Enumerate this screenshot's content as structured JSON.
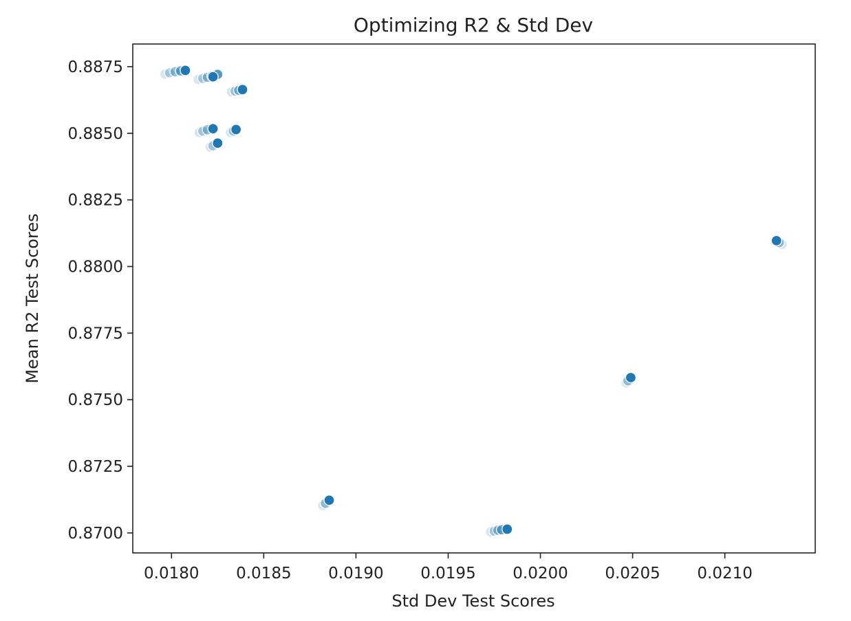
{
  "chart_data": {
    "type": "scatter",
    "title": "Optimizing R2 & Std Dev",
    "xlabel": "Std Dev Test Scores",
    "ylabel": "Mean R2 Test Scores",
    "xlim": [
      0.01779,
      0.02149
    ],
    "ylim": [
      0.86925,
      0.88835
    ],
    "xticks": [
      0.018,
      0.0185,
      0.019,
      0.0195,
      0.02,
      0.0205,
      0.021
    ],
    "xtick_labels": [
      "0.0180",
      "0.0185",
      "0.0190",
      "0.0195",
      "0.0200",
      "0.0205",
      "0.0210"
    ],
    "yticks": [
      0.87,
      0.8725,
      0.875,
      0.8775,
      0.88,
      0.8825,
      0.885,
      0.8875
    ],
    "ytick_labels": [
      "0.8700",
      "0.8725",
      "0.8750",
      "0.8775",
      "0.8800",
      "0.8825",
      "0.8850",
      "0.8875"
    ],
    "grid": false,
    "point_color": "#1f77b4",
    "series": [
      {
        "points": [
          {
            "x": 0.017965,
            "y": 0.88722,
            "a": 0.18
          },
          {
            "x": 0.01799,
            "y": 0.88727,
            "a": 0.3
          },
          {
            "x": 0.01802,
            "y": 0.88731,
            "a": 0.45
          },
          {
            "x": 0.01805,
            "y": 0.88734,
            "a": 0.6
          },
          {
            "x": 0.018075,
            "y": 0.88736,
            "a": 1.0
          },
          {
            "x": 0.018145,
            "y": 0.88702,
            "a": 0.18
          },
          {
            "x": 0.01817,
            "y": 0.88706,
            "a": 0.3
          },
          {
            "x": 0.018195,
            "y": 0.8871,
            "a": 0.45
          },
          {
            "x": 0.01822,
            "y": 0.88715,
            "a": 0.6
          },
          {
            "x": 0.01825,
            "y": 0.88721,
            "a": 0.75
          },
          {
            "x": 0.018225,
            "y": 0.88712,
            "a": 1.0
          },
          {
            "x": 0.018325,
            "y": 0.88655,
            "a": 0.18
          },
          {
            "x": 0.018345,
            "y": 0.88658,
            "a": 0.3
          },
          {
            "x": 0.018365,
            "y": 0.88661,
            "a": 0.45
          },
          {
            "x": 0.018385,
            "y": 0.88664,
            "a": 1.0
          },
          {
            "x": 0.01815,
            "y": 0.88503,
            "a": 0.18
          },
          {
            "x": 0.01817,
            "y": 0.88508,
            "a": 0.3
          },
          {
            "x": 0.018195,
            "y": 0.88513,
            "a": 0.45
          },
          {
            "x": 0.018225,
            "y": 0.88517,
            "a": 1.0
          },
          {
            "x": 0.01832,
            "y": 0.88503,
            "a": 0.18
          },
          {
            "x": 0.018335,
            "y": 0.88508,
            "a": 0.3
          },
          {
            "x": 0.01835,
            "y": 0.88514,
            "a": 1.0
          },
          {
            "x": 0.01821,
            "y": 0.88448,
            "a": 0.18
          },
          {
            "x": 0.018225,
            "y": 0.88453,
            "a": 0.3
          },
          {
            "x": 0.01825,
            "y": 0.88463,
            "a": 1.0
          },
          {
            "x": 0.02131,
            "y": 0.88083,
            "a": 0.18
          },
          {
            "x": 0.021295,
            "y": 0.8809,
            "a": 0.4
          },
          {
            "x": 0.02128,
            "y": 0.88097,
            "a": 1.0
          },
          {
            "x": 0.020465,
            "y": 0.87563,
            "a": 0.18
          },
          {
            "x": 0.020475,
            "y": 0.87571,
            "a": 0.4
          },
          {
            "x": 0.02049,
            "y": 0.87583,
            "a": 1.0
          },
          {
            "x": 0.01882,
            "y": 0.87103,
            "a": 0.18
          },
          {
            "x": 0.018835,
            "y": 0.87111,
            "a": 0.4
          },
          {
            "x": 0.018855,
            "y": 0.87123,
            "a": 1.0
          },
          {
            "x": 0.01973,
            "y": 0.87004,
            "a": 0.18
          },
          {
            "x": 0.01975,
            "y": 0.87007,
            "a": 0.3
          },
          {
            "x": 0.01977,
            "y": 0.8701,
            "a": 0.45
          },
          {
            "x": 0.01979,
            "y": 0.87012,
            "a": 0.6
          },
          {
            "x": 0.01982,
            "y": 0.87014,
            "a": 1.0
          }
        ]
      }
    ]
  }
}
